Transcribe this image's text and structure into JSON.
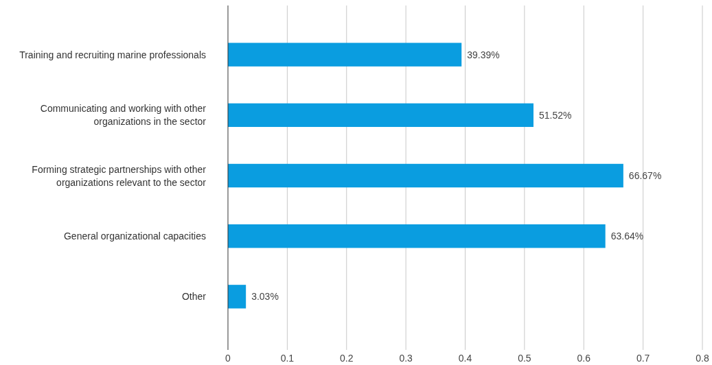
{
  "chart_data": {
    "type": "bar",
    "orientation": "horizontal",
    "categories": [
      "Training and recruiting marine professionals",
      "Communicating and working with other organizations in the sector",
      "Forming strategic partnerships with other organizations relevant to the sector",
      "General organizational capacities",
      "Other"
    ],
    "values": [
      0.3939,
      0.5152,
      0.6667,
      0.6364,
      0.0303
    ],
    "value_labels": [
      "39.39%",
      "51.52%",
      "66.67%",
      "63.64%",
      "3.03%"
    ],
    "color": "#0a9de0",
    "xlim": [
      0,
      0.8
    ],
    "xticks": [
      0,
      0.1,
      0.2,
      0.3,
      0.4,
      0.5,
      0.6,
      0.7,
      0.8
    ],
    "grid": "x"
  }
}
